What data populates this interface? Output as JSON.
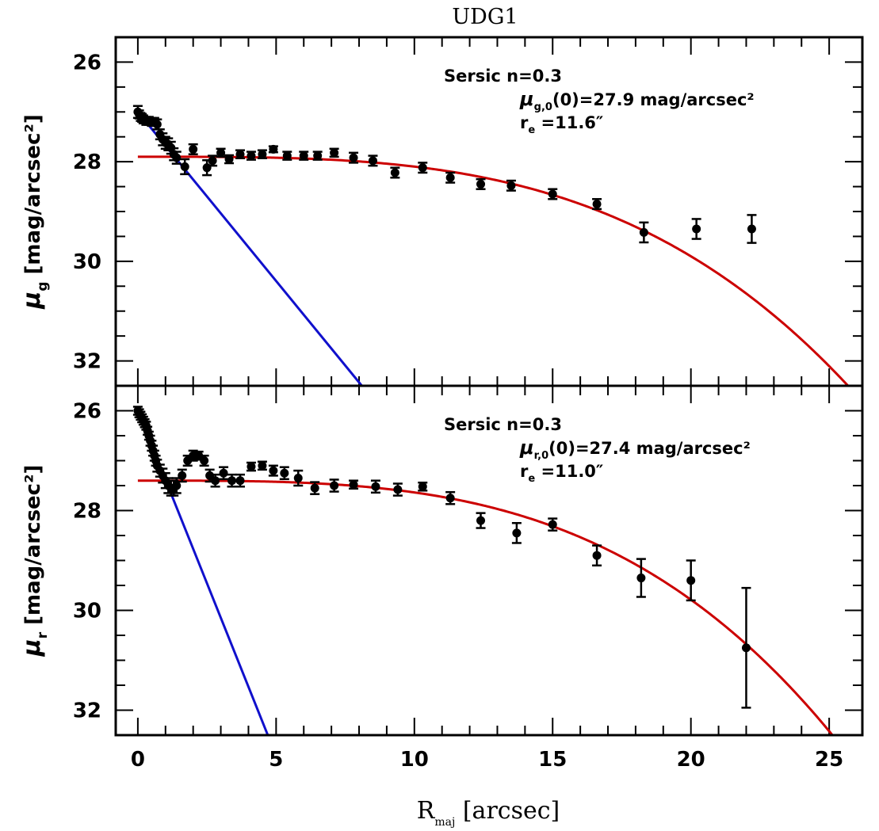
{
  "colors": {
    "model": "#cc0000",
    "inner": "#1010cc",
    "data": "#000000",
    "axes": "#000000"
  },
  "chart_data": {
    "type": "scatter",
    "title": "UDG1",
    "xlabel": {
      "main": "R",
      "sub": "maj",
      "rest": " [arcsec]"
    },
    "xlim": [
      -0.8,
      26.2
    ],
    "xticks": [
      0,
      5,
      10,
      15,
      20,
      25
    ],
    "xtick_labels": [
      "0",
      "5",
      "10",
      "15",
      "20",
      "25"
    ],
    "panels": [
      {
        "id": "g",
        "ylabel": {
          "main": "μ",
          "sub": "g",
          "rest": " [mag/arcsec²]"
        },
        "ylim": [
          32.5,
          25.5
        ],
        "yticks": [
          26,
          28,
          30,
          32
        ],
        "ytick_labels": [
          "26",
          "28",
          "30",
          "32"
        ],
        "annotation": {
          "line1": "Sersic n=0.3",
          "mu_main": "μ",
          "mu_sub": "g,0",
          "mu_rest": "(0)=27.9 mag/arcsec²",
          "re_main": "r",
          "re_sub": "e",
          "re_rest": " =11.6″"
        },
        "points": [
          {
            "x": 0.0,
            "y": 27.0,
            "err": 0.12
          },
          {
            "x": 0.05,
            "y": 27.05,
            "err": 0.08
          },
          {
            "x": 0.1,
            "y": 27.1,
            "err": 0.08
          },
          {
            "x": 0.15,
            "y": 27.12,
            "err": 0.08
          },
          {
            "x": 0.2,
            "y": 27.15,
            "err": 0.08
          },
          {
            "x": 0.3,
            "y": 27.18,
            "err": 0.08
          },
          {
            "x": 0.4,
            "y": 27.18,
            "err": 0.08
          },
          {
            "x": 0.5,
            "y": 27.2,
            "err": 0.08
          },
          {
            "x": 0.6,
            "y": 27.2,
            "err": 0.08
          },
          {
            "x": 0.7,
            "y": 27.25,
            "err": 0.1
          },
          {
            "x": 0.8,
            "y": 27.45,
            "err": 0.1
          },
          {
            "x": 0.9,
            "y": 27.55,
            "err": 0.12
          },
          {
            "x": 1.0,
            "y": 27.62,
            "err": 0.12
          },
          {
            "x": 1.1,
            "y": 27.65,
            "err": 0.12
          },
          {
            "x": 1.2,
            "y": 27.72,
            "err": 0.12
          },
          {
            "x": 1.3,
            "y": 27.85,
            "err": 0.12
          },
          {
            "x": 1.4,
            "y": 27.92,
            "err": 0.12
          },
          {
            "x": 1.7,
            "y": 28.1,
            "err": 0.15
          },
          {
            "x": 2.0,
            "y": 27.75,
            "err": 0.1
          },
          {
            "x": 2.5,
            "y": 28.12,
            "err": 0.15
          },
          {
            "x": 2.7,
            "y": 27.98,
            "err": 0.1
          },
          {
            "x": 3.0,
            "y": 27.82,
            "err": 0.08
          },
          {
            "x": 3.3,
            "y": 27.95,
            "err": 0.08
          },
          {
            "x": 3.7,
            "y": 27.85,
            "err": 0.08
          },
          {
            "x": 4.1,
            "y": 27.88,
            "err": 0.08
          },
          {
            "x": 4.5,
            "y": 27.85,
            "err": 0.08
          },
          {
            "x": 4.9,
            "y": 27.75,
            "err": 0.06
          },
          {
            "x": 5.4,
            "y": 27.88,
            "err": 0.08
          },
          {
            "x": 6.0,
            "y": 27.88,
            "err": 0.08
          },
          {
            "x": 6.5,
            "y": 27.88,
            "err": 0.08
          },
          {
            "x": 7.1,
            "y": 27.82,
            "err": 0.08
          },
          {
            "x": 7.8,
            "y": 27.92,
            "err": 0.1
          },
          {
            "x": 8.5,
            "y": 27.98,
            "err": 0.1
          },
          {
            "x": 9.3,
            "y": 28.22,
            "err": 0.1
          },
          {
            "x": 10.3,
            "y": 28.12,
            "err": 0.1
          },
          {
            "x": 11.3,
            "y": 28.32,
            "err": 0.1
          },
          {
            "x": 12.4,
            "y": 28.45,
            "err": 0.1
          },
          {
            "x": 13.5,
            "y": 28.48,
            "err": 0.1
          },
          {
            "x": 15.0,
            "y": 28.65,
            "err": 0.1
          },
          {
            "x": 16.6,
            "y": 28.85,
            "err": 0.1
          },
          {
            "x": 18.3,
            "y": 29.42,
            "err": 0.2
          },
          {
            "x": 20.2,
            "y": 29.35,
            "err": 0.2
          },
          {
            "x": 22.2,
            "y": 29.35,
            "err": 0.28
          }
        ],
        "sersic": {
          "mu0": 27.9,
          "re": 11.6,
          "n": 0.3
        },
        "inner_line": {
          "x": [
            0.0,
            8.1
          ],
          "y": [
            27.0,
            32.5
          ]
        }
      },
      {
        "id": "r",
        "ylabel": {
          "main": "μ",
          "sub": "r",
          "rest": " [mag/arcsec²]"
        },
        "ylim": [
          32.5,
          25.5
        ],
        "yticks": [
          26,
          28,
          30,
          32
        ],
        "ytick_labels": [
          "26",
          "28",
          "30",
          "32"
        ],
        "annotation": {
          "line1": "Sersic n=0.3",
          "mu_main": "μ",
          "mu_sub": "r,0",
          "mu_rest": "(0)=27.4 mag/arcsec²",
          "re_main": "r",
          "re_sub": "e",
          "re_rest": " =11.0″"
        },
        "points": [
          {
            "x": 0.0,
            "y": 26.0,
            "err": 0.08
          },
          {
            "x": 0.05,
            "y": 26.05,
            "err": 0.08
          },
          {
            "x": 0.1,
            "y": 26.1,
            "err": 0.08
          },
          {
            "x": 0.15,
            "y": 26.15,
            "err": 0.08
          },
          {
            "x": 0.2,
            "y": 26.2,
            "err": 0.08
          },
          {
            "x": 0.25,
            "y": 26.25,
            "err": 0.08
          },
          {
            "x": 0.3,
            "y": 26.3,
            "err": 0.08
          },
          {
            "x": 0.35,
            "y": 26.4,
            "err": 0.08
          },
          {
            "x": 0.4,
            "y": 26.5,
            "err": 0.08
          },
          {
            "x": 0.45,
            "y": 26.6,
            "err": 0.1
          },
          {
            "x": 0.5,
            "y": 26.7,
            "err": 0.1
          },
          {
            "x": 0.55,
            "y": 26.8,
            "err": 0.1
          },
          {
            "x": 0.6,
            "y": 26.9,
            "err": 0.1
          },
          {
            "x": 0.65,
            "y": 27.0,
            "err": 0.1
          },
          {
            "x": 0.7,
            "y": 27.1,
            "err": 0.12
          },
          {
            "x": 0.8,
            "y": 27.2,
            "err": 0.12
          },
          {
            "x": 0.9,
            "y": 27.3,
            "err": 0.14
          },
          {
            "x": 1.0,
            "y": 27.4,
            "err": 0.15
          },
          {
            "x": 1.1,
            "y": 27.5,
            "err": 0.15
          },
          {
            "x": 1.2,
            "y": 27.55,
            "err": 0.15
          },
          {
            "x": 1.3,
            "y": 27.55,
            "err": 0.15
          },
          {
            "x": 1.4,
            "y": 27.5,
            "err": 0.15
          },
          {
            "x": 1.6,
            "y": 27.3,
            "err": 0.12
          },
          {
            "x": 1.8,
            "y": 27.0,
            "err": 0.1
          },
          {
            "x": 2.0,
            "y": 26.9,
            "err": 0.1
          },
          {
            "x": 2.2,
            "y": 26.9,
            "err": 0.08
          },
          {
            "x": 2.4,
            "y": 27.0,
            "err": 0.1
          },
          {
            "x": 2.6,
            "y": 27.3,
            "err": 0.12
          },
          {
            "x": 2.8,
            "y": 27.4,
            "err": 0.12
          },
          {
            "x": 3.1,
            "y": 27.25,
            "err": 0.12
          },
          {
            "x": 3.4,
            "y": 27.4,
            "err": 0.12
          },
          {
            "x": 3.7,
            "y": 27.4,
            "err": 0.12
          },
          {
            "x": 4.1,
            "y": 27.12,
            "err": 0.08
          },
          {
            "x": 4.5,
            "y": 27.1,
            "err": 0.08
          },
          {
            "x": 4.9,
            "y": 27.2,
            "err": 0.1
          },
          {
            "x": 5.3,
            "y": 27.25,
            "err": 0.12
          },
          {
            "x": 5.8,
            "y": 27.35,
            "err": 0.15
          },
          {
            "x": 6.4,
            "y": 27.55,
            "err": 0.12
          },
          {
            "x": 7.1,
            "y": 27.5,
            "err": 0.12
          },
          {
            "x": 7.8,
            "y": 27.48,
            "err": 0.08
          },
          {
            "x": 8.6,
            "y": 27.52,
            "err": 0.12
          },
          {
            "x": 9.4,
            "y": 27.58,
            "err": 0.12
          },
          {
            "x": 10.3,
            "y": 27.52,
            "err": 0.08
          },
          {
            "x": 11.3,
            "y": 27.75,
            "err": 0.12
          },
          {
            "x": 12.4,
            "y": 28.2,
            "err": 0.15
          },
          {
            "x": 13.7,
            "y": 28.45,
            "err": 0.2
          },
          {
            "x": 15.0,
            "y": 28.28,
            "err": 0.12
          },
          {
            "x": 16.6,
            "y": 28.9,
            "err": 0.2
          },
          {
            "x": 18.2,
            "y": 29.35,
            "err": 0.38
          },
          {
            "x": 20.0,
            "y": 29.4,
            "err": 0.4
          },
          {
            "x": 22.0,
            "y": 30.75,
            "err": 1.2
          }
        ],
        "sersic": {
          "mu0": 27.4,
          "re": 11.0,
          "n": 0.3
        },
        "inner_line": {
          "x": [
            0.0,
            4.7
          ],
          "y": [
            26.0,
            32.5
          ]
        }
      }
    ]
  }
}
